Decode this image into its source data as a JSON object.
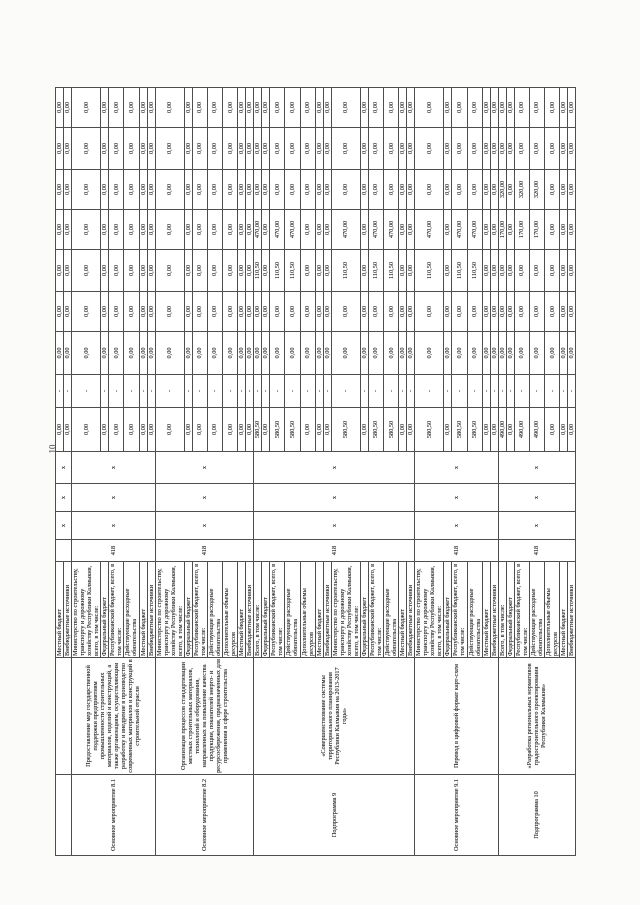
{
  "page_number": "10",
  "table": {
    "columns": {
      "status_width": 81,
      "name_width": 117,
      "source_width": 96,
      "code_width": 22,
      "mark_widths": [
        28,
        28,
        32
      ],
      "value_widths": [
        44,
        33,
        43,
        40,
        42,
        40,
        40,
        42,
        40
      ]
    },
    "blocks": [
      {
        "status": "",
        "description": "",
        "code": "",
        "marks": [
          "х",
          "х",
          "х"
        ],
        "rows": [
          {
            "label": "Местный бюджет",
            "values": [
              "0,00",
              "-",
              "0,00",
              "0,00",
              "0,00",
              "0,00",
              "0,00",
              "0,00",
              "0,00"
            ]
          },
          {
            "label": "Внебюджетные источники",
            "values": [
              "0,00",
              "-",
              "0,00",
              "0,00",
              "0,00",
              "0,00",
              "0,00",
              "0,00",
              "0,00"
            ]
          }
        ]
      },
      {
        "status": "Основное мероприятие 8.1",
        "description": "Предоставление мер государственной поддержки предприятиям промышленности строительных материалов, изделий и конструкций, а также организациям, осуществляющим разработку и внедрение в производство современных материалов и конструкций в строительной отрасли",
        "code": "418",
        "marks": [
          "х",
          "х",
          "х"
        ],
        "rows": [
          {
            "label": "Министерство по строительству, транспорту и дорожному хозяйству Республики Калмыкия, всего, в том числе:",
            "values": [
              "0,00",
              "-",
              "0,00",
              "0,00",
              "0,00",
              "0,00",
              "0,00",
              "0,00",
              "0,00"
            ]
          },
          {
            "label": "Федеральный бюджет",
            "values": [
              "0,00",
              "-",
              "0,00",
              "0,00",
              "0,00",
              "0,00",
              "0,00",
              "0,00",
              "0,00"
            ]
          },
          {
            "label": "Республиканский бюджет, всего, в том числе:",
            "values": [
              "0,00",
              "-",
              "0,00",
              "0,00",
              "0,00",
              "0,00",
              "0,00",
              "0,00",
              "0,00"
            ]
          },
          {
            "label": "Действующие расходные обязательства",
            "values": [
              "0,00",
              "-",
              "0,00",
              "0,00",
              "0,00",
              "0,00",
              "0,00",
              "0,00",
              "0,00"
            ]
          },
          {
            "label": "Местный бюджет",
            "values": [
              "0,00",
              "-",
              "0,00",
              "0,00",
              "0,00",
              "0,00",
              "0,00",
              "0,00",
              "0,00"
            ]
          },
          {
            "label": "Внебюджетные источники",
            "values": [
              "0,00",
              "-",
              "0,00",
              "0,00",
              "0,00",
              "0,00",
              "0,00",
              "0,00",
              "0,00"
            ]
          }
        ]
      },
      {
        "status": "Основное мероприятие 8.2",
        "description": "Организация процессов стандартизации местных строительных материалов, технологий и оборудования, направленных на повышение качества продукции, показателей энерго- и ресурсосбережения, предназначенных для применения в сфере строительства",
        "code": "418",
        "marks": [
          "х",
          "х",
          "х"
        ],
        "rows": [
          {
            "label": "Министерство по строительству, транспорту и дорожному хозяйству Республики Калмыкия, всего, в том числе:",
            "values": [
              "0,00",
              "-",
              "0,00",
              "0,00",
              "0,00",
              "0,00",
              "0,00",
              "0,00",
              "0,00"
            ]
          },
          {
            "label": "Федеральный бюджет",
            "values": [
              "0,00",
              "-",
              "0,00",
              "0,00",
              "0,00",
              "0,00",
              "0,00",
              "0,00",
              "0,00"
            ]
          },
          {
            "label": "Республиканский бюджет, всего, в том числе:",
            "values": [
              "0,00",
              "-",
              "0,00",
              "0,00",
              "0,00",
              "0,00",
              "0,00",
              "0,00",
              "0,00"
            ]
          },
          {
            "label": "Действующие расходные обязательства",
            "values": [
              "0,00",
              "-",
              "0,00",
              "0,00",
              "0,00",
              "0,00",
              "0,00",
              "0,00",
              "0,00"
            ]
          },
          {
            "label": "Дополнительные объемы ресурсов",
            "values": [
              "0,00",
              "-",
              "0,00",
              "0,00",
              "0,00",
              "0,00",
              "0,00",
              "0,00",
              "0,00"
            ]
          },
          {
            "label": "Местный бюджет",
            "values": [
              "0,00",
              "-",
              "0,00",
              "0,00",
              "0,00",
              "0,00",
              "0,00",
              "0,00",
              "0,00"
            ]
          },
          {
            "label": "Внебюджетные источники",
            "values": [
              "0,00",
              "-",
              "0,00",
              "0,00",
              "0,00",
              "0,00",
              "0,00",
              "0,00",
              "0,00"
            ]
          }
        ]
      },
      {
        "status": "Подпрограмма 9",
        "description": "«Совершенствование системы территориального планирования Республики Калмыкия на 2013-2017 годы»",
        "code": "418",
        "marks": [
          "х",
          "х",
          "х"
        ],
        "rows": [
          {
            "label": "Всего, в том числе:",
            "values": [
              "580,50",
              "-",
              "0,00",
              "0,00",
              "110,50",
              "470,00",
              "0,00",
              "0,00",
              "0,00"
            ]
          },
          {
            "label": "Федеральный бюджет",
            "values": [
              "0,00",
              "-",
              "0,00",
              "0,00",
              "0,00",
              "0,00",
              "0,00",
              "0,00",
              "0,00"
            ]
          },
          {
            "label": "Республиканский бюджет, всего, в том числе:",
            "values": [
              "580,50",
              "-",
              "0,00",
              "0,00",
              "110,50",
              "470,00",
              "0,00",
              "0,00",
              "0,00"
            ]
          },
          {
            "label": "Действующие расходные обязательства",
            "values": [
              "580,50",
              "-",
              "0,00",
              "0,00",
              "110,50",
              "470,00",
              "0,00",
              "0,00",
              "0,00"
            ]
          },
          {
            "label": "Дополнительные объемы ресурсов",
            "values": [
              "0,00",
              "-",
              "0,00",
              "0,00",
              "0,00",
              "0,00",
              "0,00",
              "0,00",
              "0,00"
            ]
          },
          {
            "label": "Местный бюджет",
            "values": [
              "0,00",
              "-",
              "0,00",
              "0,00",
              "0,00",
              "0,00",
              "0,00",
              "0,00",
              "0,00"
            ]
          },
          {
            "label": "Внебюджетные источники",
            "values": [
              "0,00",
              "-",
              "0,00",
              "0,00",
              "0,00",
              "0,00",
              "0,00",
              "0,00",
              "0,00"
            ]
          },
          {
            "label": "Министерство по строительству, транспорту и дорожному хозяйству Республики Калмыкия, всего, в том числе:",
            "values": [
              "580,50",
              "-",
              "0,00",
              "0,00",
              "110,50",
              "470,00",
              "0,00",
              "0,00",
              "0,00"
            ]
          },
          {
            "label": "Федеральный бюджет",
            "values": [
              "0,00",
              "-",
              "0,00",
              "0,00",
              "0,00",
              "0,00",
              "0,00",
              "0,00",
              "0,00"
            ]
          },
          {
            "label": "Республиканский бюджет, всего, в том числе:",
            "values": [
              "580,50",
              "-",
              "0,00",
              "0,00",
              "110,50",
              "470,00",
              "0,00",
              "0,00",
              "0,00"
            ]
          },
          {
            "label": "Действующие расходные обязательства",
            "values": [
              "580,50",
              "-",
              "0,00",
              "0,00",
              "110,50",
              "470,00",
              "0,00",
              "0,00",
              "0,00"
            ]
          },
          {
            "label": "Местный бюджет",
            "values": [
              "0,00",
              "-",
              "0,00",
              "0,00",
              "0,00",
              "0,00",
              "0,00",
              "0,00",
              "0,00"
            ]
          },
          {
            "label": "Внебюджетные источники",
            "values": [
              "0,00",
              "-",
              "0,00",
              "0,00",
              "0,00",
              "0,00",
              "0,00",
              "0,00",
              "0,00"
            ]
          }
        ]
      },
      {
        "status": "Основное мероприятие 9.1",
        "description": "Перевод в цифровой формат карт-схем",
        "code": "418",
        "marks": [
          "х",
          "х",
          "х"
        ],
        "rows": [
          {
            "label": "Министерство по строительству, транспорту и дорожному хозяйству Республики Калмыкия, всего, в том числе:",
            "values": [
              "580,50",
              "-",
              "0,00",
              "0,00",
              "110,50",
              "470,00",
              "0,00",
              "0,00",
              "0,00"
            ]
          },
          {
            "label": "Федеральный бюджет",
            "values": [
              "0,00",
              "-",
              "0,00",
              "0,00",
              "0,00",
              "0,00",
              "0,00",
              "0,00",
              "0,00"
            ]
          },
          {
            "label": "Республиканский бюджет, всего, в том числе:",
            "values": [
              "580,50",
              "-",
              "0,00",
              "0,00",
              "110,50",
              "470,00",
              "0,00",
              "0,00",
              "0,00"
            ]
          },
          {
            "label": "Действующие расходные обязательства",
            "values": [
              "580,50",
              "-",
              "0,00",
              "0,00",
              "110,50",
              "470,00",
              "0,00",
              "0,00",
              "0,00"
            ]
          },
          {
            "label": "Местный бюджет",
            "values": [
              "0,00",
              "-",
              "0,00",
              "0,00",
              "0,00",
              "0,00",
              "0,00",
              "0,00",
              "0,00"
            ]
          },
          {
            "label": "Внебюджетные источники",
            "values": [
              "0,00",
              "-",
              "0,00",
              "0,00",
              "0,00",
              "0,00",
              "0,00",
              "0,00",
              "0,00"
            ]
          }
        ]
      },
      {
        "status": "Подпрограмма 10",
        "description": "«Разработка региональных нормативов градостроительного проектирования Республики Калмыкия»",
        "code": "418",
        "marks": [
          "х",
          "х",
          "х"
        ],
        "rows": [
          {
            "label": "Всего, в том числе:",
            "values": [
              "490,00",
              "-",
              "0,00",
              "0,00",
              "0,00",
              "170,00",
              "320,00",
              "0,00",
              "0,00"
            ]
          },
          {
            "label": "Федеральный бюджет",
            "values": [
              "0,00",
              "-",
              "0,00",
              "0,00",
              "0,00",
              "0,00",
              "0,00",
              "0,00",
              "0,00"
            ]
          },
          {
            "label": "Республиканский бюджет, всего, в том числе:",
            "values": [
              "490,00",
              "-",
              "0,00",
              "0,00",
              "0,00",
              "170,00",
              "320,00",
              "0,00",
              "0,00"
            ]
          },
          {
            "label": "Действующие расходные обязательства",
            "values": [
              "490,00",
              "-",
              "0,00",
              "0,00",
              "0,00",
              "170,00",
              "320,00",
              "0,00",
              "0,00"
            ]
          },
          {
            "label": "Дополнительные объемы ресурсов",
            "values": [
              "0,00",
              "-",
              "0,00",
              "0,00",
              "0,00",
              "0,00",
              "0,00",
              "0,00",
              "0,00"
            ]
          },
          {
            "label": "Местный бюджет",
            "values": [
              "0,00",
              "-",
              "0,00",
              "0,00",
              "0,00",
              "0,00",
              "0,00",
              "0,00",
              "0,00"
            ]
          },
          {
            "label": "Внебюджетные источники",
            "values": [
              "0,00",
              "-",
              "0,00",
              "0,00",
              "0,00",
              "0,00",
              "0,00",
              "0,00",
              "0,00"
            ]
          }
        ]
      }
    ]
  }
}
